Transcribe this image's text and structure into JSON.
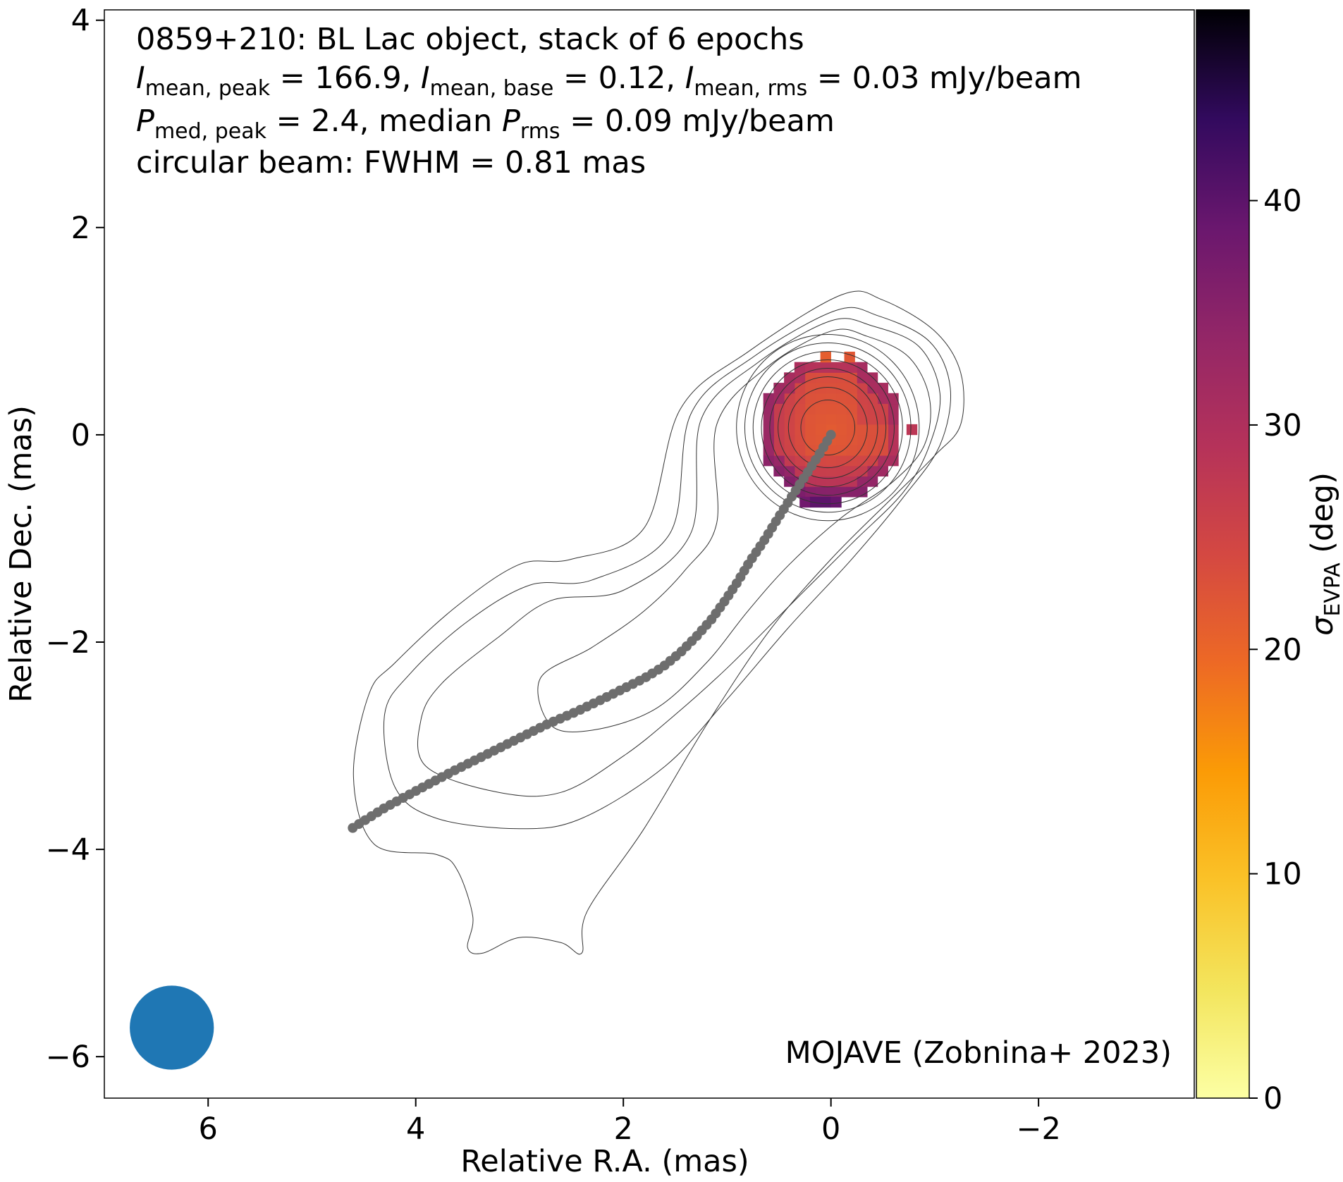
{
  "chart_data": {
    "type": "heatmap",
    "annotation": {
      "line1": "0859+210: BL Lac object, stack of 6 epochs",
      "line2": {
        "i_sym": "I",
        "peak_sub": "mean, peak",
        "peak_text": " = 166.9, ",
        "base_sub": "mean, base",
        "base_text": " = 0.12, ",
        "rms_sub": "mean, rms",
        "rms_text": " = 0.03 mJy/beam"
      },
      "line3": {
        "p_sym": "P",
        "peak_sub": "med, peak",
        "peak_text": " = 2.4, median ",
        "rms_sub": "rms",
        "rms_text": " = 0.09 mJy/beam"
      },
      "line4": "circular beam: FWHM = 0.81 mas"
    },
    "credit": "MOJAVE (Zobnina+ 2023)",
    "xlabel": "Relative R.A. (mas)",
    "ylabel": "Relative Dec. (mas)",
    "xlim": [
      7.0,
      -3.5
    ],
    "ylim": [
      -6.4,
      4.1
    ],
    "xticks": [
      6,
      4,
      2,
      0,
      -2
    ],
    "xtick_labels": [
      "6",
      "4",
      "2",
      "0",
      "−2"
    ],
    "yticks": [
      4,
      2,
      0,
      -2,
      -4,
      -6
    ],
    "ytick_labels": [
      "4",
      "2",
      "0",
      "−2",
      "−4",
      "−6"
    ],
    "colorbar": {
      "sym": "σ",
      "sub": "EVPA",
      "unit": " (deg)",
      "range": [
        0,
        48.5
      ],
      "ticks": [
        0,
        10,
        20,
        30,
        40
      ],
      "tick_labels": [
        "0",
        "10",
        "20",
        "30",
        "40"
      ],
      "colormap": "inferno_r"
    },
    "beam": {
      "center": [
        6.35,
        -5.72
      ],
      "fwhm_mas": 0.81,
      "color": "#1f77b4"
    },
    "ridge_line": {
      "color": "#6e6e6e",
      "x": [
        0.0,
        0.12,
        0.25,
        0.38,
        0.52,
        0.65,
        0.78,
        0.9,
        1.02,
        1.15,
        1.3,
        1.45,
        1.62,
        1.8,
        2.0,
        2.2,
        2.45,
        2.75,
        3.05,
        3.35,
        3.65,
        3.95,
        4.3,
        4.65
      ],
      "y": [
        0.0,
        -0.2,
        -0.4,
        -0.6,
        -0.82,
        -1.03,
        -1.22,
        -1.42,
        -1.6,
        -1.78,
        -1.95,
        -2.1,
        -2.24,
        -2.35,
        -2.45,
        -2.55,
        -2.67,
        -2.8,
        -2.95,
        -3.1,
        -3.25,
        -3.41,
        -3.6,
        -3.82
      ]
    },
    "evpa_map": {
      "center": [
        0.0,
        0.05
      ],
      "radius_mas": 0.68,
      "pixel_mas": 0.1,
      "base_value": 21.5,
      "extra_pixels": [
        {
          "x": 0.05,
          "y": 0.75,
          "value": 21
        },
        {
          "x": -0.18,
          "y": 0.75,
          "value": 22
        },
        {
          "x": -0.78,
          "y": 0.05,
          "value": 28
        },
        {
          "x": 0.25,
          "y": -0.65,
          "value": 38
        },
        {
          "x": 0.15,
          "y": -0.65,
          "value": 40
        },
        {
          "x": 0.05,
          "y": -0.65,
          "value": 40
        },
        {
          "x": -0.05,
          "y": -0.65,
          "value": 39
        }
      ]
    },
    "contours": [
      {
        "x": [
          -0.1,
          0.8,
          1.45,
          1.8,
          2.5,
          3.0,
          3.6,
          4.2,
          4.45,
          4.6,
          4.4,
          3.8,
          3.6,
          3.45,
          3.5,
          3.35,
          3.0,
          2.6,
          2.4,
          2.35,
          1.8,
          1.2,
          0.6,
          0.0,
          -0.6,
          -1.0,
          -1.25,
          -1.25,
          -1.0,
          -0.5
        ],
        "y": [
          1.35,
          0.8,
          0.25,
          -0.9,
          -1.2,
          -1.25,
          -1.65,
          -2.2,
          -2.5,
          -3.3,
          -3.95,
          -4.05,
          -4.2,
          -4.65,
          -4.95,
          -5.0,
          -4.85,
          -4.9,
          -5.0,
          -4.6,
          -3.8,
          -2.8,
          -1.9,
          -1.2,
          -0.6,
          -0.2,
          0.1,
          0.6,
          1.0,
          1.3
        ]
      },
      {
        "x": [
          -0.05,
          0.75,
          1.35,
          1.55,
          2.3,
          2.9,
          3.5,
          4.05,
          4.3,
          4.2,
          3.8,
          3.0,
          2.4,
          1.6,
          1.0,
          0.4,
          -0.2,
          -0.7,
          -1.05,
          -1.15,
          -0.95,
          -0.45
        ],
        "y": [
          1.2,
          0.75,
          0.2,
          -0.95,
          -1.4,
          -1.45,
          -1.8,
          -2.3,
          -2.7,
          -3.4,
          -3.7,
          -3.8,
          -3.7,
          -3.2,
          -2.55,
          -1.85,
          -1.2,
          -0.6,
          -0.1,
          0.45,
          0.9,
          1.15
        ]
      },
      {
        "x": [
          0.0,
          0.7,
          1.25,
          1.35,
          2.0,
          2.7,
          3.2,
          3.75,
          3.95,
          3.9,
          3.2,
          2.6,
          2.0,
          1.5,
          1.0,
          0.4,
          -0.2,
          -0.7,
          -0.95,
          -1.05,
          -0.85,
          -0.4
        ],
        "y": [
          1.1,
          0.7,
          0.15,
          -0.95,
          -1.5,
          -1.6,
          -1.95,
          -2.4,
          -2.75,
          -3.2,
          -3.45,
          -3.45,
          -3.1,
          -2.7,
          -2.25,
          -1.65,
          -1.05,
          -0.55,
          -0.1,
          0.4,
          0.85,
          1.05
        ]
      },
      {
        "x": [
          0.0,
          0.62,
          1.1,
          1.1,
          1.4,
          1.8,
          2.3,
          2.8,
          2.7,
          2.3,
          1.7,
          1.2,
          0.8,
          0.4,
          -0.1,
          -0.6,
          -0.9,
          -0.95,
          -0.75,
          -0.35
        ],
        "y": [
          1.0,
          0.65,
          0.1,
          -0.85,
          -1.3,
          -1.7,
          -2.05,
          -2.35,
          -2.8,
          -2.85,
          -2.65,
          -2.2,
          -1.7,
          -1.25,
          -0.8,
          -0.45,
          -0.1,
          0.35,
          0.75,
          0.95
        ]
      },
      {
        "ring": [
          0.03,
          0.07,
          0.88
        ]
      },
      {
        "ring": [
          0.03,
          0.07,
          0.8
        ]
      },
      {
        "ring": [
          0.03,
          0.07,
          0.72
        ]
      },
      {
        "ring": [
          0.03,
          0.07,
          0.64
        ]
      },
      {
        "ring": [
          0.03,
          0.07,
          0.56
        ]
      },
      {
        "ring": [
          0.03,
          0.07,
          0.48
        ]
      },
      {
        "ring": [
          0.03,
          0.07,
          0.38
        ]
      },
      {
        "ring": [
          0.03,
          0.07,
          0.26
        ]
      }
    ]
  }
}
